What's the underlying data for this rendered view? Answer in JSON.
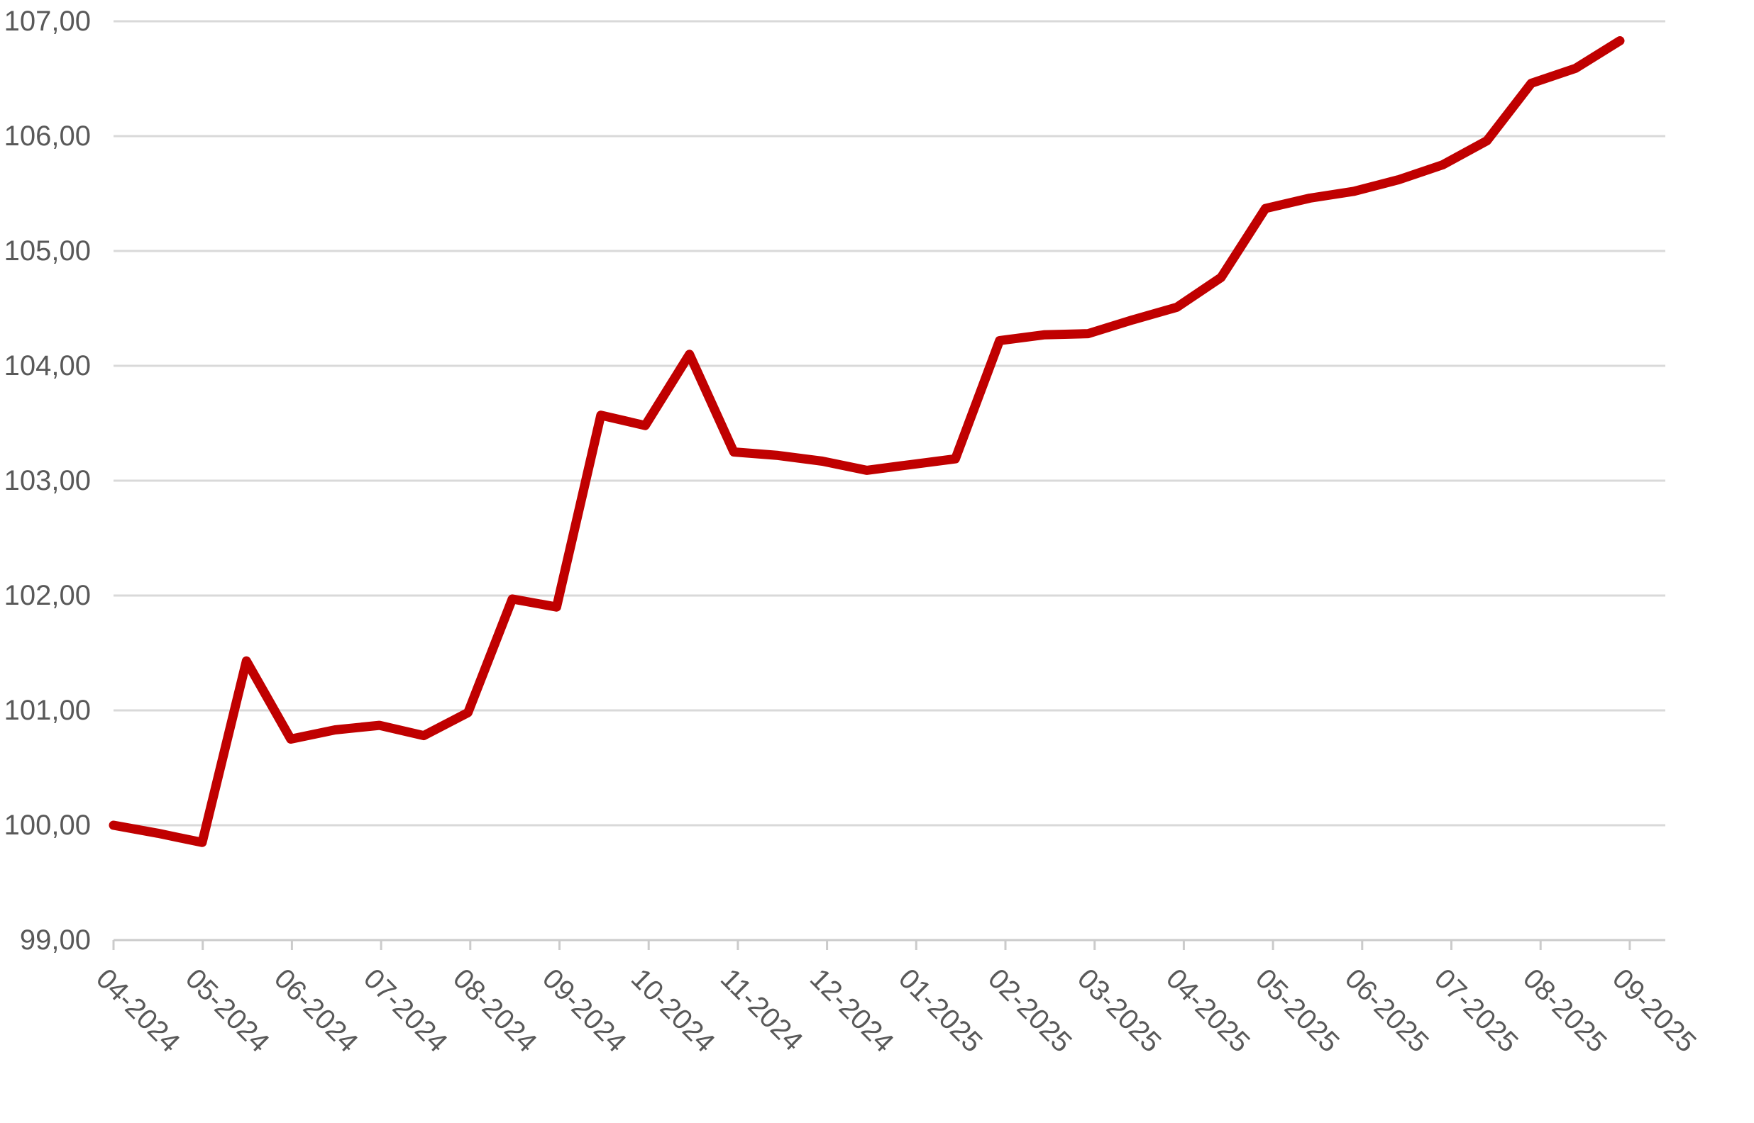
{
  "chart_data": {
    "type": "line",
    "x_labels": [
      "04-2024",
      "05-2024",
      "06-2024",
      "07-2024",
      "08-2024",
      "09-2024",
      "10-2024",
      "11-2024",
      "12-2024",
      "01-2025",
      "02-2025",
      "03-2025",
      "04-2025",
      "05-2025",
      "06-2025",
      "07-2025",
      "08-2025",
      "09-2025"
    ],
    "x_frequency": "semi-monthly, 2 points per labeled month, last month has 1 point",
    "values": [
      100.0,
      99.93,
      99.85,
      101.43,
      100.75,
      100.83,
      100.87,
      100.78,
      100.98,
      101.97,
      101.9,
      103.57,
      103.48,
      104.1,
      103.25,
      103.22,
      103.17,
      103.09,
      103.14,
      103.19,
      104.22,
      104.27,
      104.28,
      104.4,
      104.51,
      104.77,
      105.37,
      105.46,
      105.52,
      105.62,
      105.75,
      105.96,
      106.46,
      106.59,
      106.83
    ],
    "y_axis": {
      "min": 99,
      "max": 107,
      "step": 1,
      "tick_labels": [
        "107,00",
        "106,00",
        "105,00",
        "104,00",
        "103,00",
        "102,00",
        "101,00",
        "100,00",
        "99,00"
      ]
    },
    "title": "",
    "xlabel": "",
    "ylabel": "",
    "grid": true,
    "legend": "none",
    "colors": {
      "line": "#c00000",
      "gridline": "#d9d9d9",
      "axis": "#cbcbcb",
      "label_text": "#595959"
    }
  }
}
